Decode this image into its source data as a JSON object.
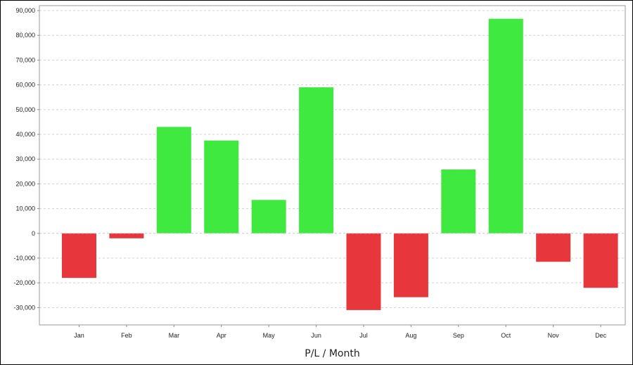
{
  "chart_data": {
    "type": "bar",
    "title": "",
    "xlabel": "P/L / Month",
    "ylabel": "",
    "categories": [
      "Jan",
      "Feb",
      "Mar",
      "Apr",
      "May",
      "Jun",
      "Jul",
      "Aug",
      "Sep",
      "Oct",
      "Nov",
      "Dec"
    ],
    "values": [
      -18000,
      -2000,
      43000,
      37500,
      13500,
      59000,
      -31000,
      -25800,
      25800,
      86700,
      -11500,
      -22000
    ],
    "ylim": [
      -37000,
      92000
    ],
    "yticks": [
      -30000,
      -20000,
      -10000,
      0,
      10000,
      20000,
      30000,
      40000,
      50000,
      60000,
      70000,
      80000,
      90000
    ],
    "ytick_labels": [
      "-30,000",
      "-20,000",
      "-10,000",
      "0",
      "10,000",
      "20,000",
      "30,000",
      "40,000",
      "50,000",
      "60,000",
      "70,000",
      "80,000",
      "90,000"
    ],
    "grid": true,
    "colors": {
      "positive": "#3fe93f",
      "negative": "#e8373c",
      "grid": "#d0d0d0",
      "axis": "#888888"
    }
  }
}
